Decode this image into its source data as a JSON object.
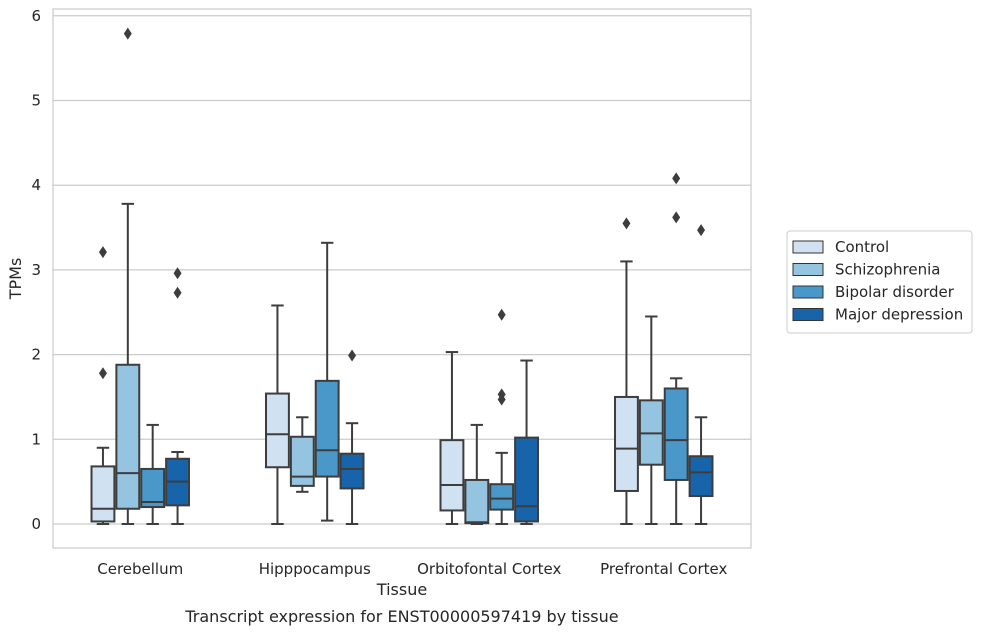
{
  "chart_data": {
    "type": "boxplot",
    "xlabel": "Tissue",
    "ylabel": "TPMs",
    "caption": "Transcript expression for ENST00000597419 by tissue",
    "ylim": [
      -0.28,
      6.1
    ],
    "yticks": [
      0,
      1,
      2,
      3,
      4,
      5,
      6
    ],
    "grid": "horizontal",
    "legend_position": "right",
    "categories": [
      "Cerebellum",
      "Hipppocampus",
      "Orbitofontal Cortex",
      "Prefrontal Cortex"
    ],
    "series": [
      {
        "name": "Control",
        "color": "#d0e1f2",
        "boxes": [
          {
            "whislo": 0.0,
            "q1": 0.03,
            "med": 0.18,
            "q3": 0.68,
            "whishi": 0.9,
            "fliers": [
              1.78,
              3.21
            ]
          },
          {
            "whislo": 0.0,
            "q1": 0.67,
            "med": 1.06,
            "q3": 1.54,
            "whishi": 2.58,
            "fliers": []
          },
          {
            "whislo": 0.0,
            "q1": 0.16,
            "med": 0.46,
            "q3": 0.99,
            "whishi": 2.03,
            "fliers": []
          },
          {
            "whislo": 0.0,
            "q1": 0.39,
            "med": 0.89,
            "q3": 1.5,
            "whishi": 3.1,
            "fliers": [
              3.55
            ]
          }
        ]
      },
      {
        "name": "Schizophrenia",
        "color": "#94c4df",
        "boxes": [
          {
            "whislo": 0.0,
            "q1": 0.18,
            "med": 0.6,
            "q3": 1.88,
            "whishi": 3.78,
            "fliers": [
              5.79
            ]
          },
          {
            "whislo": 0.38,
            "q1": 0.45,
            "med": 0.56,
            "q3": 1.03,
            "whishi": 1.26,
            "fliers": []
          },
          {
            "whislo": 0.0,
            "q1": 0.01,
            "med": 0.02,
            "q3": 0.52,
            "whishi": 1.17,
            "fliers": []
          },
          {
            "whislo": 0.0,
            "q1": 0.7,
            "med": 1.07,
            "q3": 1.46,
            "whishi": 2.45,
            "fliers": []
          }
        ]
      },
      {
        "name": "Bipolar disorder",
        "color": "#4a98c9",
        "boxes": [
          {
            "whislo": 0.0,
            "q1": 0.2,
            "med": 0.26,
            "q3": 0.65,
            "whishi": 1.17,
            "fliers": []
          },
          {
            "whislo": 0.04,
            "q1": 0.56,
            "med": 0.87,
            "q3": 1.69,
            "whishi": 3.32,
            "fliers": []
          },
          {
            "whislo": 0.0,
            "q1": 0.17,
            "med": 0.3,
            "q3": 0.47,
            "whishi": 0.84,
            "fliers": [
              1.47,
              1.53,
              2.47
            ]
          },
          {
            "whislo": 0.0,
            "q1": 0.52,
            "med": 0.99,
            "q3": 1.6,
            "whishi": 1.72,
            "fliers": [
              3.62,
              4.08
            ]
          }
        ]
      },
      {
        "name": "Major depression",
        "color": "#1764ab",
        "boxes": [
          {
            "whislo": 0.0,
            "q1": 0.22,
            "med": 0.5,
            "q3": 0.77,
            "whishi": 0.85,
            "fliers": [
              2.73,
              2.96
            ]
          },
          {
            "whislo": 0.0,
            "q1": 0.42,
            "med": 0.65,
            "q3": 0.83,
            "whishi": 1.19,
            "fliers": [
              1.99
            ]
          },
          {
            "whislo": 0.0,
            "q1": 0.03,
            "med": 0.21,
            "q3": 1.02,
            "whishi": 1.93,
            "fliers": []
          },
          {
            "whislo": 0.0,
            "q1": 0.33,
            "med": 0.61,
            "q3": 0.8,
            "whishi": 1.26,
            "fliers": [
              3.47
            ]
          }
        ]
      }
    ]
  }
}
